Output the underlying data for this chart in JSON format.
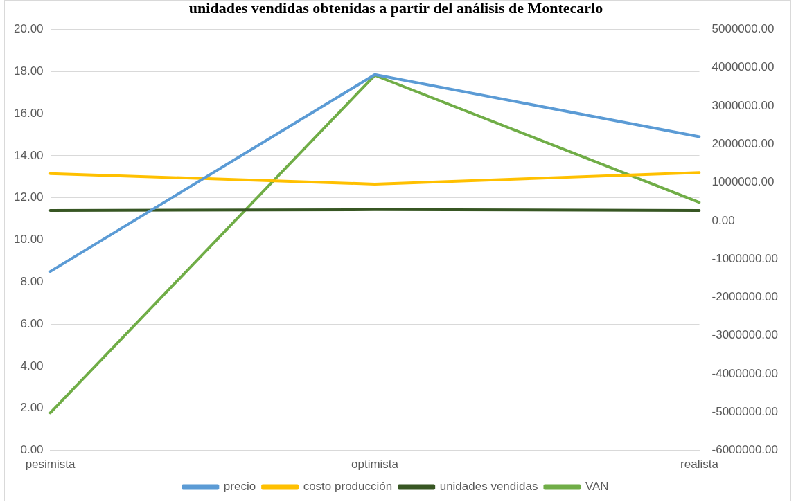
{
  "chart_data": {
    "type": "line",
    "title": "unidades vendidas obtenidas a partir del análisis de Montecarlo",
    "categories": [
      "pesimista",
      "optimista",
      "realista"
    ],
    "series": [
      {
        "name": "precio",
        "color": "#5b9bd5",
        "values": [
          8.5,
          17.85,
          14.9
        ]
      },
      {
        "name": "costo producción",
        "color": "#ffc000",
        "values": [
          13.15,
          12.65,
          13.2
        ]
      },
      {
        "name": "unidades vendidas",
        "color": "#375623",
        "axis": "y2",
        "values": [
          270000,
          290000,
          270000
        ]
      },
      {
        "name": "VAN",
        "color": "#70ad47",
        "axis": "y2",
        "values": [
          -5020000,
          3800000,
          480000
        ]
      }
    ],
    "ylim": [
      0,
      20
    ],
    "yticks": [
      {
        "value": 0,
        "label": "0.00"
      },
      {
        "value": 2,
        "label": "2.00"
      },
      {
        "value": 4,
        "label": "4.00"
      },
      {
        "value": 6,
        "label": "6.00"
      },
      {
        "value": 8,
        "label": "8.00"
      },
      {
        "value": 10,
        "label": "10.00"
      },
      {
        "value": 12,
        "label": "12.00"
      },
      {
        "value": 14,
        "label": "14.00"
      },
      {
        "value": 16,
        "label": "16.00"
      },
      {
        "value": 18,
        "label": "18.00"
      },
      {
        "value": 20,
        "label": "20.00"
      }
    ],
    "y2lim": [
      -6000000,
      5000000
    ],
    "y2ticks": [
      {
        "value": -6000000,
        "label": "-6000000.00"
      },
      {
        "value": -5000000,
        "label": "-5000000.00"
      },
      {
        "value": -4000000,
        "label": "-4000000.00"
      },
      {
        "value": -3000000,
        "label": "-3000000.00"
      },
      {
        "value": -2000000,
        "label": "-2000000.00"
      },
      {
        "value": -1000000,
        "label": "-1000000.00"
      },
      {
        "value": 0,
        "label": "0.00"
      },
      {
        "value": 1000000,
        "label": "1000000.00"
      },
      {
        "value": 2000000,
        "label": "2000000.00"
      },
      {
        "value": 3000000,
        "label": "3000000.00"
      },
      {
        "value": 4000000,
        "label": "4000000.00"
      },
      {
        "value": 5000000,
        "label": "5000000.00"
      }
    ],
    "grid": "y",
    "legend": "bottom",
    "marker": "none",
    "line_style": "solid"
  }
}
